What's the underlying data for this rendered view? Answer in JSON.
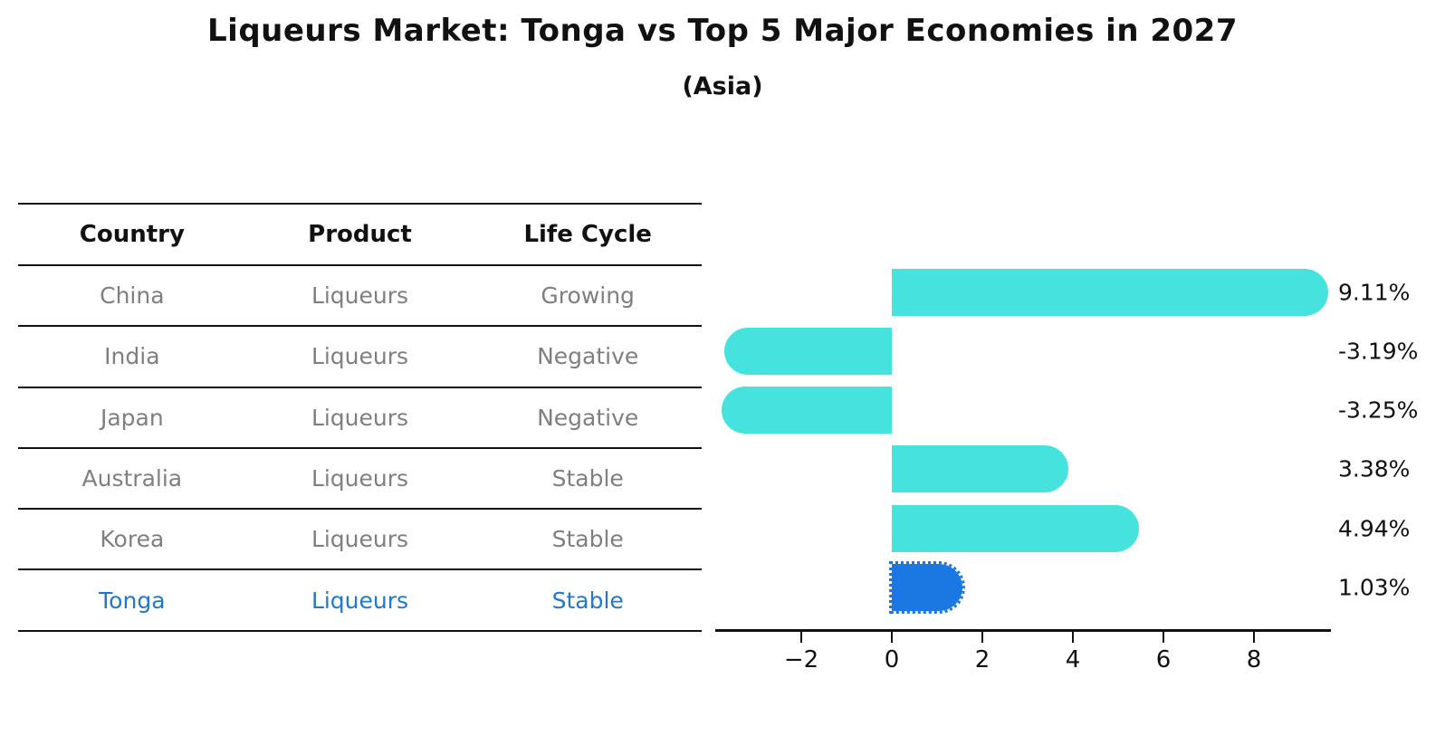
{
  "title": "Liqueurs Market: Tonga vs Top 5 Major Economies in 2027",
  "subtitle": "(Asia)",
  "table": {
    "headers": [
      "Country",
      "Product",
      "Life Cycle"
    ],
    "rows": [
      {
        "country": "China",
        "product": "Liqueurs",
        "life_cycle": "Growing",
        "highlight": false
      },
      {
        "country": "India",
        "product": "Liqueurs",
        "life_cycle": "Negative",
        "highlight": false
      },
      {
        "country": "Japan",
        "product": "Liqueurs",
        "life_cycle": "Negative",
        "highlight": false
      },
      {
        "country": "Australia",
        "product": "Liqueurs",
        "life_cycle": "Stable",
        "highlight": false
      },
      {
        "country": "Korea",
        "product": "Liqueurs",
        "life_cycle": "Stable",
        "highlight": false
      },
      {
        "country": "Tonga",
        "product": "Liqueurs",
        "life_cycle": "Stable",
        "highlight": true
      }
    ]
  },
  "chart_data": {
    "type": "bar",
    "orientation": "horizontal",
    "categories": [
      "China",
      "India",
      "Japan",
      "Australia",
      "Korea",
      "Tonga"
    ],
    "values": [
      9.11,
      -3.19,
      -3.25,
      3.38,
      4.94,
      1.03
    ],
    "value_labels": [
      "9.11%",
      "-3.19%",
      "-3.25%",
      "3.38%",
      "4.94%",
      "1.03%"
    ],
    "x_ticks": [
      -2,
      0,
      2,
      4,
      6,
      8
    ],
    "x_tick_labels": [
      "−2",
      "0",
      "2",
      "4",
      "6",
      "8"
    ],
    "xlim": [
      -3.9,
      9.7
    ],
    "xlabel": "",
    "ylabel": "",
    "grid": false,
    "legend": false,
    "bar_color": "#46e3de",
    "highlight_bar_color": "#1b78e2",
    "highlight_index": 5,
    "title": "Liqueurs Market: Tonga vs Top 5 Major Economies in 2027",
    "subtitle": "(Asia)"
  },
  "colors": {
    "row_text": "#7f7f7f",
    "highlight_text": "#2178cd",
    "header_text": "#111111",
    "axis": "#111111"
  }
}
